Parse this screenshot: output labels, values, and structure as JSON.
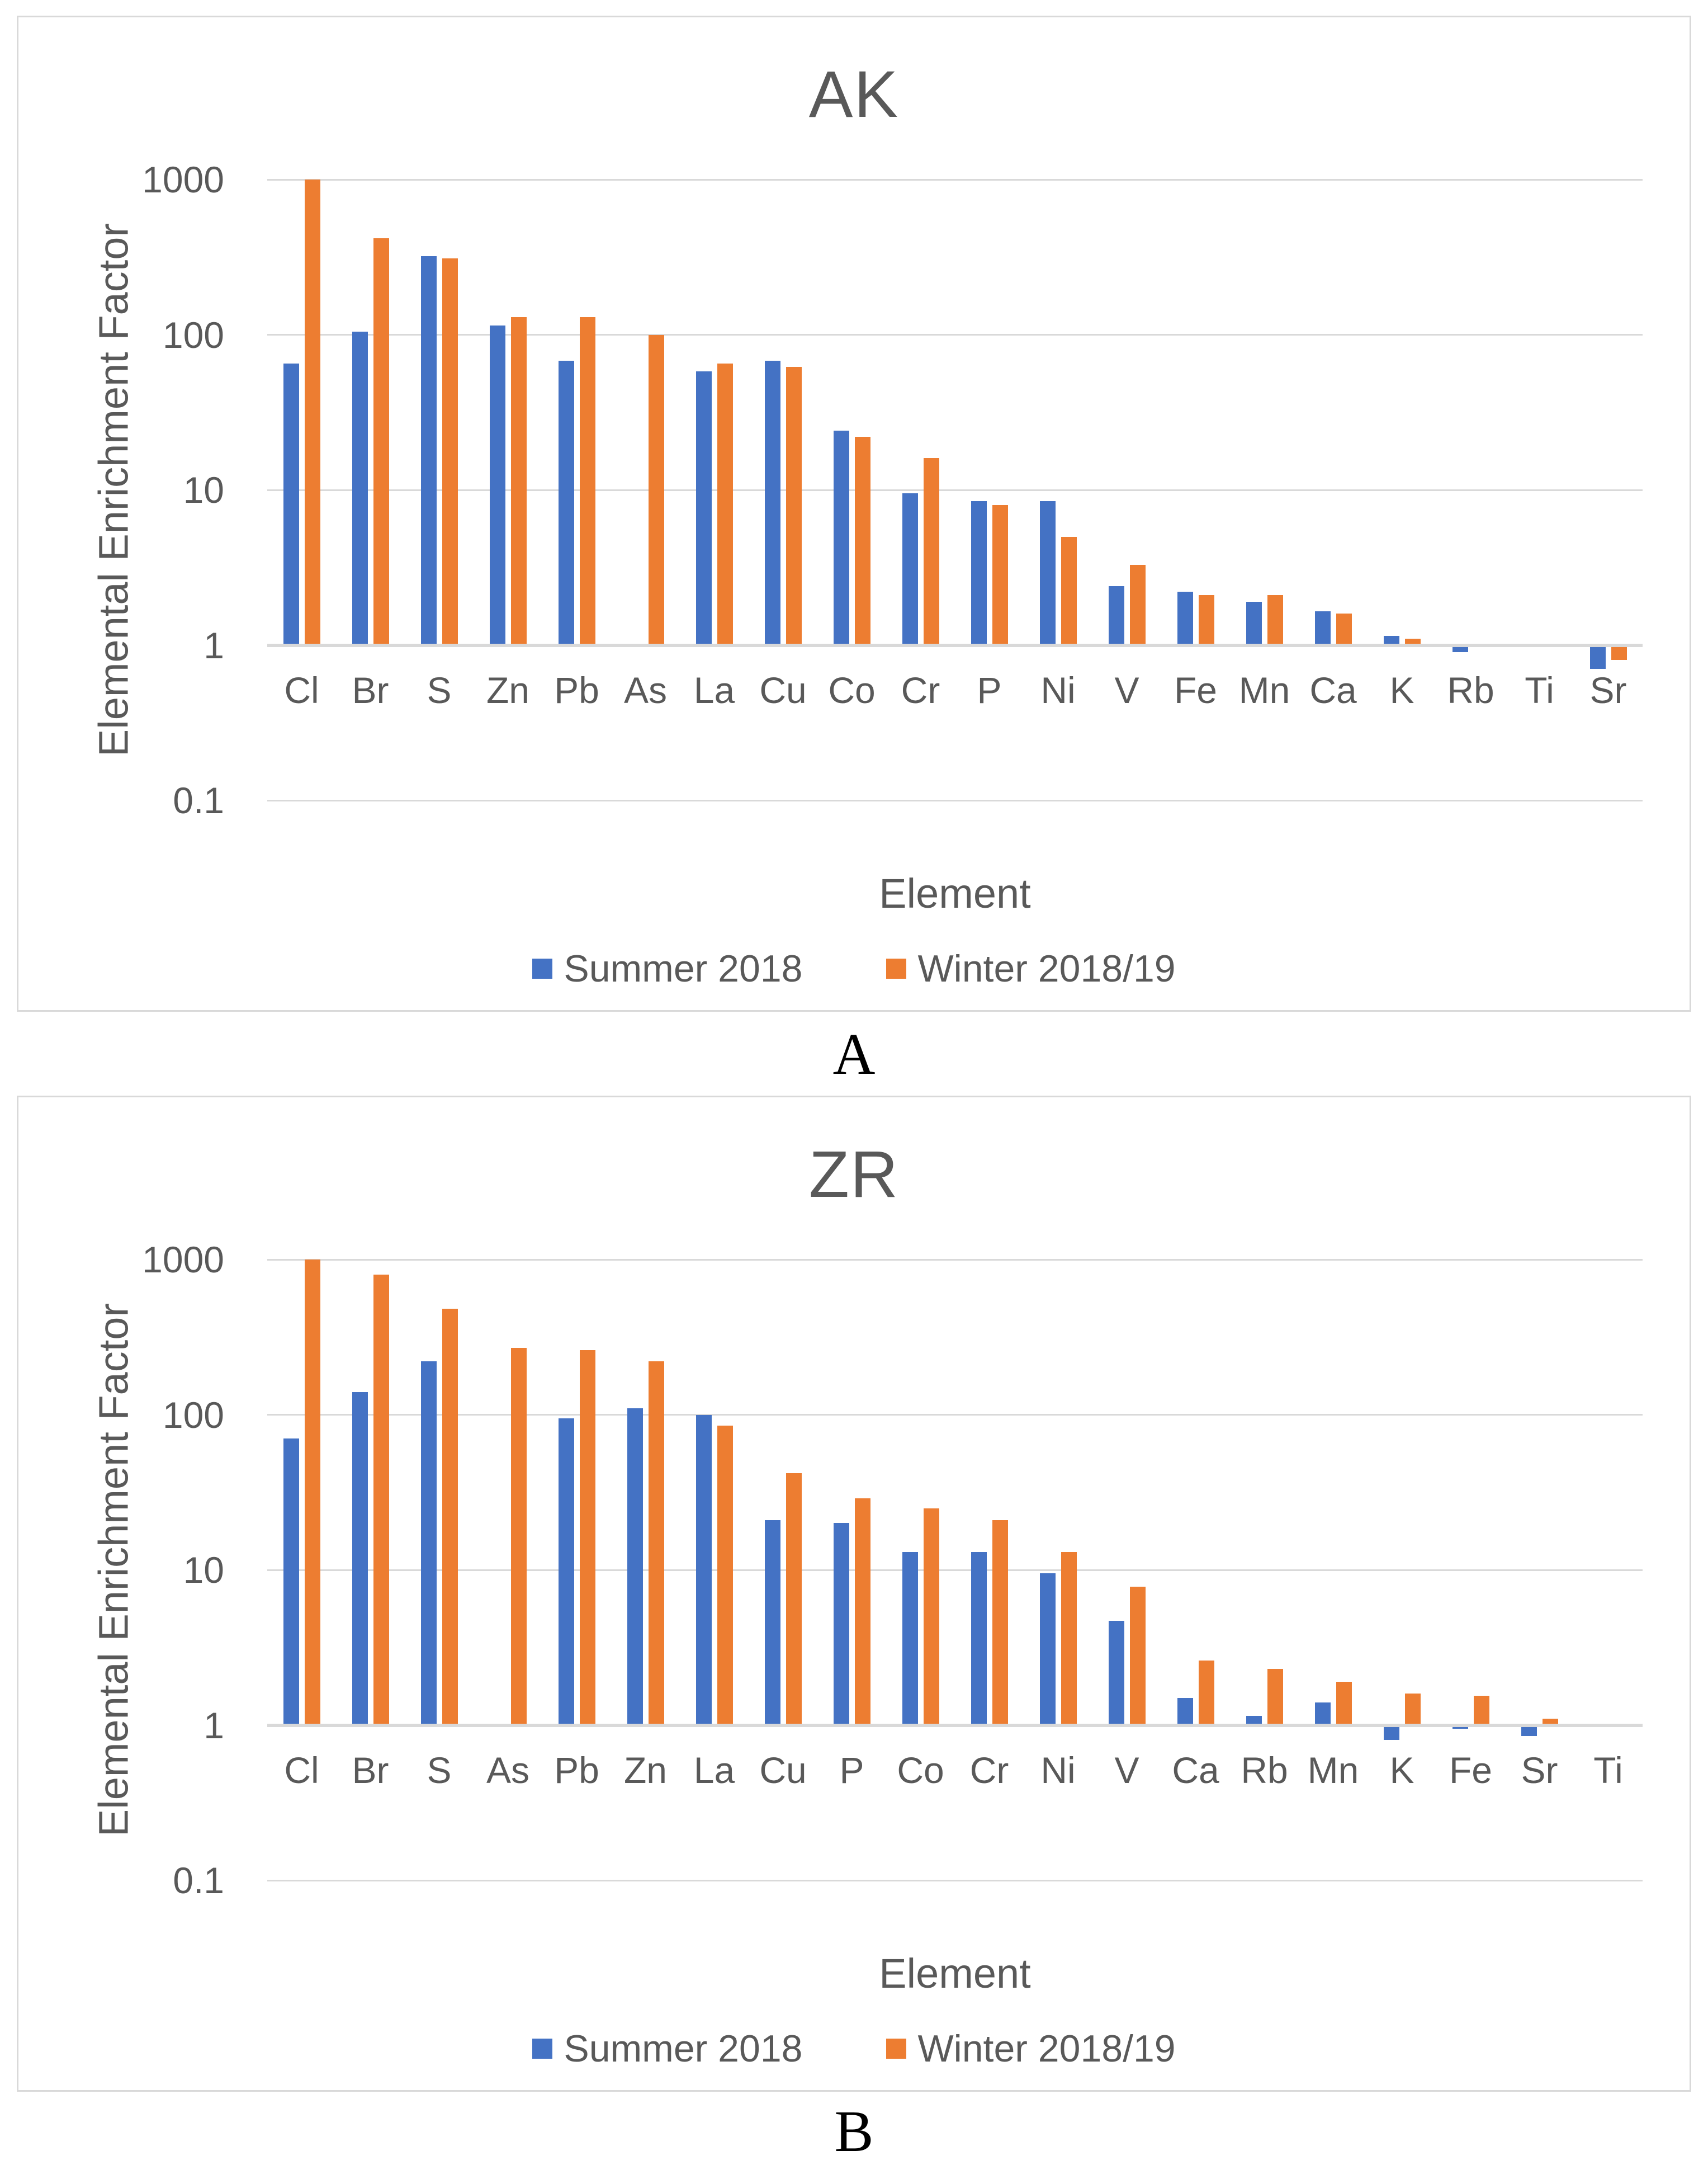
{
  "colors": {
    "summer": "#4472C4",
    "winter": "#ED7D31",
    "text": "#595959",
    "grid": "#D9D9D9",
    "panel_label": "#000000"
  },
  "chart_data": [
    {
      "type": "bar",
      "title": "AK",
      "panel_label": "A",
      "xlabel": "Element",
      "ylabel": "Elemental Enrichment Factor",
      "yscale": "log",
      "ylim": [
        0.1,
        1000
      ],
      "yticks": [
        1000,
        100,
        10,
        1,
        0.1
      ],
      "ytick_labels": [
        "1000",
        "100",
        "10",
        "1",
        "0.1"
      ],
      "bar_base": 1,
      "grid": true,
      "legend_position": "bottom",
      "categories": [
        "Cl",
        "Br",
        "S",
        "Zn",
        "Pb",
        "As",
        "La",
        "Cu",
        "Co",
        "Cr",
        "P",
        "Ni",
        "V",
        "Fe",
        "Mn",
        "Ca",
        "K",
        "Rb",
        "Ti",
        "Sr"
      ],
      "series": [
        {
          "name": "Summer 2018",
          "color_key": "summer",
          "values": [
            65,
            105,
            320,
            115,
            68,
            null,
            58,
            68,
            24,
            9.5,
            8.5,
            8.5,
            2.4,
            2.2,
            1.9,
            1.65,
            1.15,
            0.9,
            null,
            0.7
          ]
        },
        {
          "name": "Winter 2018/19",
          "color_key": "winter",
          "values": [
            1000,
            420,
            310,
            130,
            130,
            100,
            65,
            62,
            22,
            16,
            8,
            5,
            3.3,
            2.1,
            2.1,
            1.6,
            1.1,
            null,
            null,
            0.8
          ]
        }
      ]
    },
    {
      "type": "bar",
      "title": "ZR",
      "panel_label": "B",
      "xlabel": "Element",
      "ylabel": "Elemental Enrichment Factor",
      "yscale": "log",
      "ylim": [
        0.1,
        1000
      ],
      "yticks": [
        1000,
        100,
        10,
        1,
        0.1
      ],
      "ytick_labels": [
        "1000",
        "100",
        "10",
        "1",
        "0.1"
      ],
      "bar_base": 1,
      "grid": true,
      "legend_position": "bottom",
      "categories": [
        "Cl",
        "Br",
        "S",
        "As",
        "Pb",
        "Zn",
        "La",
        "Cu",
        "P",
        "Co",
        "Cr",
        "Ni",
        "V",
        "Ca",
        "Rb",
        "Mn",
        "K",
        "Fe",
        "Sr",
        "Ti"
      ],
      "series": [
        {
          "name": "Summer 2018",
          "color_key": "summer",
          "values": [
            70,
            140,
            220,
            null,
            95,
            110,
            100,
            21,
            20,
            13,
            13,
            9.5,
            4.7,
            1.5,
            1.15,
            1.4,
            0.8,
            0.95,
            0.85,
            null
          ]
        },
        {
          "name": "Winter 2018/19",
          "color_key": "winter",
          "values": [
            1000,
            800,
            480,
            270,
            260,
            220,
            85,
            42,
            29,
            25,
            21,
            13,
            7.8,
            2.6,
            2.3,
            1.9,
            1.6,
            1.55,
            1.1,
            null
          ]
        }
      ]
    }
  ]
}
